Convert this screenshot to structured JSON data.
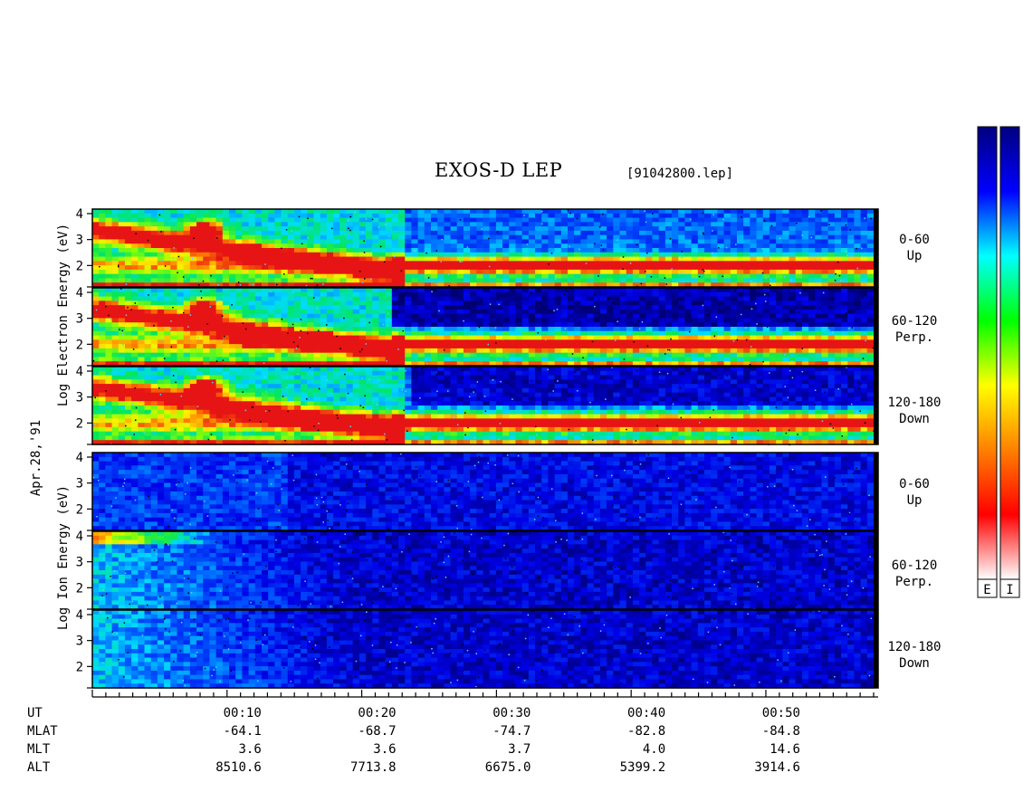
{
  "title": "EXOS-D LEP",
  "file_label": "[91042800.lep]",
  "date_label": "Apr.28,'91",
  "electron_label": "Log  Electron  Energy  (eV)",
  "ion_label": "Log   Ion   Energy  (eV)",
  "pitch_angles": [
    {
      "range": "0-60",
      "dir": "Up"
    },
    {
      "range": "60-120",
      "dir": "Perp."
    },
    {
      "range": "120-180",
      "dir": "Down"
    }
  ],
  "colorbar_labels": [
    "E",
    "I"
  ],
  "colorbar_colors": [
    "#ffffff",
    "#ff0000",
    "#ff8000",
    "#ffff00",
    "#00ff00",
    "#00ffff",
    "#0000ff",
    "#000080"
  ],
  "chart_data": {
    "type": "heatmap",
    "panels": [
      "electron-up",
      "electron-perp",
      "electron-down",
      "ion-up",
      "ion-perp",
      "ion-down"
    ],
    "ytick_labels": [
      "4",
      "3",
      "2"
    ],
    "ylim": [
      1,
      4
    ],
    "x_ticks": [
      "00:10",
      "00:20",
      "00:30",
      "00:40",
      "00:50"
    ],
    "x_range_min": [
      0,
      58
    ]
  },
  "axis_table": {
    "rows": [
      {
        "label": "UT",
        "values": [
          "00:10",
          "00:20",
          "00:30",
          "00:40",
          "00:50"
        ]
      },
      {
        "label": "MLAT",
        "values": [
          "-64.1",
          "-68.7",
          "-74.7",
          "-82.8",
          "-84.8"
        ]
      },
      {
        "label": "MLT",
        "values": [
          "3.6",
          "3.6",
          "3.7",
          "4.0",
          "14.6"
        ]
      },
      {
        "label": "ALT",
        "values": [
          "8510.6",
          "7713.8",
          "6675.0",
          "5399.2",
          "3914.6"
        ]
      }
    ]
  }
}
